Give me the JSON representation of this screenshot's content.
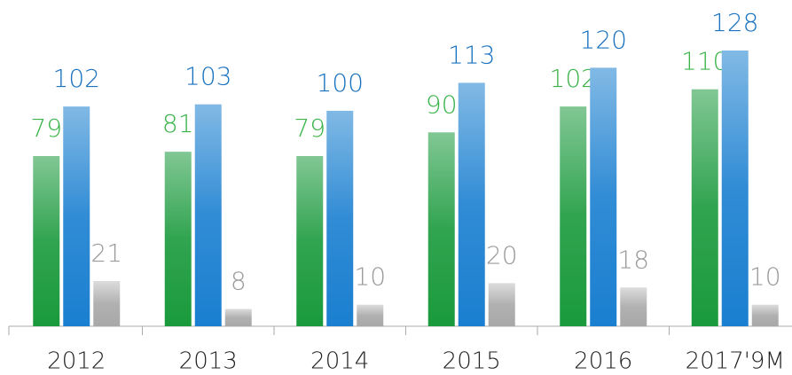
{
  "chart_data": {
    "type": "bar",
    "categories": [
      "2012",
      "2013",
      "2014",
      "2015",
      "2016",
      "2017'9M"
    ],
    "series": [
      {
        "color": "#1a9a3c",
        "values": [
          79,
          81,
          79,
          90,
          102,
          110
        ]
      },
      {
        "color": "#1a7fd0",
        "values": [
          102,
          103,
          100,
          113,
          120,
          128
        ]
      },
      {
        "color": "#a8a8a8",
        "values": [
          21,
          8,
          10,
          20,
          18,
          10
        ]
      }
    ],
    "ylim": [
      0,
      150
    ]
  }
}
